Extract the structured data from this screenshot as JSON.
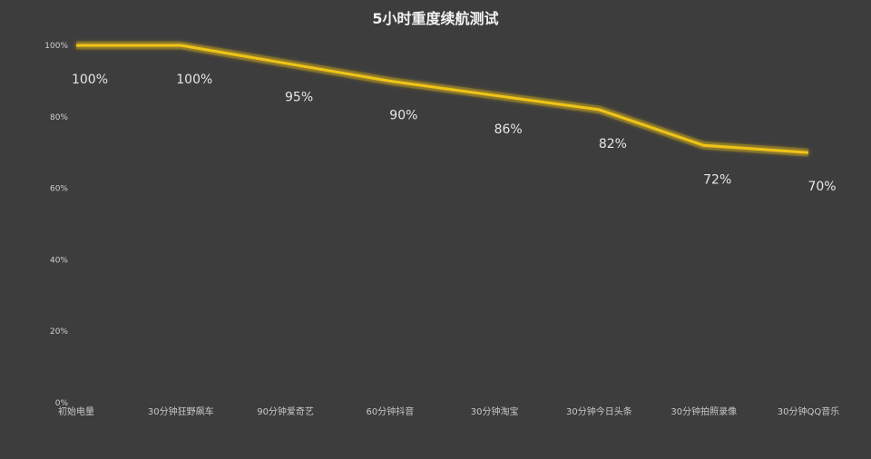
{
  "chart_data": {
    "type": "line",
    "title": "5小时重度续航测试",
    "categories": [
      "初始电量",
      "30分钟狂野飙车",
      "90分钟爱奇艺",
      "60分钟抖音",
      "30分钟淘宝",
      "30分钟今日头条",
      "30分钟拍照录像",
      "30分钟QQ音乐"
    ],
    "series": [
      {
        "values": [
          100,
          100,
          95,
          90,
          86,
          82,
          72,
          70
        ],
        "labels": [
          "100%",
          "100%",
          "95%",
          "90%",
          "86%",
          "82%",
          "72%",
          "70%"
        ]
      }
    ],
    "yticks": [
      "0%",
      "20%",
      "40%",
      "60%",
      "80%",
      "100%"
    ],
    "ylim": [
      0,
      100
    ],
    "grid": false,
    "line_color": "#f0c419",
    "background": "#3d3d3d"
  }
}
